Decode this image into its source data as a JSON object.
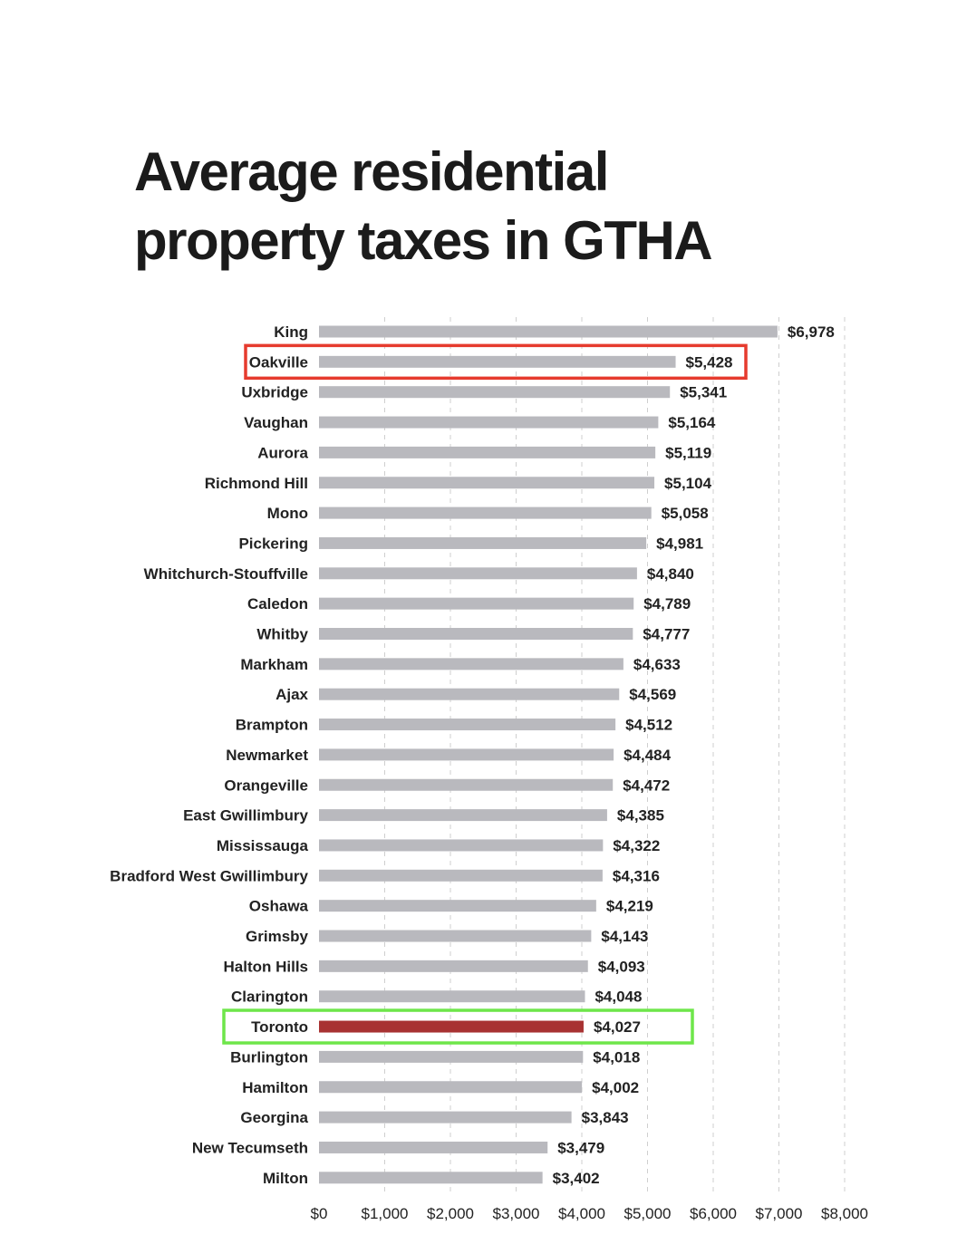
{
  "chart_data": {
    "type": "bar",
    "orientation": "horizontal",
    "title": "Average residential property taxes in GTHA",
    "categories": [
      "King",
      "Oakville",
      "Uxbridge",
      "Vaughan",
      "Aurora",
      "Richmond Hill",
      "Mono",
      "Pickering",
      "Whitchurch-Stouffville",
      "Caledon",
      "Whitby",
      "Markham",
      "Ajax",
      "Brampton",
      "Newmarket",
      "Orangeville",
      "East Gwillimbury",
      "Mississauga",
      "Bradford West Gwillimbury",
      "Oshawa",
      "Grimsby",
      "Halton Hills",
      "Clarington",
      "Toronto",
      "Burlington",
      "Hamilton",
      "Georgina",
      "New Tecumseth",
      "Milton"
    ],
    "values": [
      6978,
      5428,
      5341,
      5164,
      5119,
      5104,
      5058,
      4981,
      4840,
      4789,
      4777,
      4633,
      4569,
      4512,
      4484,
      4472,
      4385,
      4322,
      4316,
      4219,
      4143,
      4093,
      4048,
      4027,
      4018,
      4002,
      3843,
      3479,
      3402
    ],
    "value_labels": [
      "$6,978",
      "$5,428",
      "$5,341",
      "$5,164",
      "$5,119",
      "$5,104",
      "$5,058",
      "$4,981",
      "$4,840",
      "$4,789",
      "$4,777",
      "$4,633",
      "$4,569",
      "$4,512",
      "$4,484",
      "$4,472",
      "$4,385",
      "$4,322",
      "$4,316",
      "$4,219",
      "$4,143",
      "$4,093",
      "$4,048",
      "$4,027",
      "$4,018",
      "$4,002",
      "$3,843",
      "$3,479",
      "$3,402"
    ],
    "xlim": [
      0,
      8000
    ],
    "x_ticks": [
      0,
      1000,
      2000,
      3000,
      4000,
      5000,
      6000,
      7000,
      8000
    ],
    "x_tick_labels": [
      "$0",
      "$1,000",
      "$2,000",
      "$3,000",
      "$4,000",
      "$5,000",
      "$6,000",
      "$7,000",
      "$8,000"
    ],
    "grid": true,
    "bar_color": "#b9b9be",
    "highlight_bar": {
      "category": "Toronto",
      "color": "#a83232"
    },
    "annotation_boxes": [
      {
        "category": "Oakville",
        "color": "#e63b2e"
      },
      {
        "category": "Toronto",
        "color": "#6ee64a"
      }
    ]
  }
}
